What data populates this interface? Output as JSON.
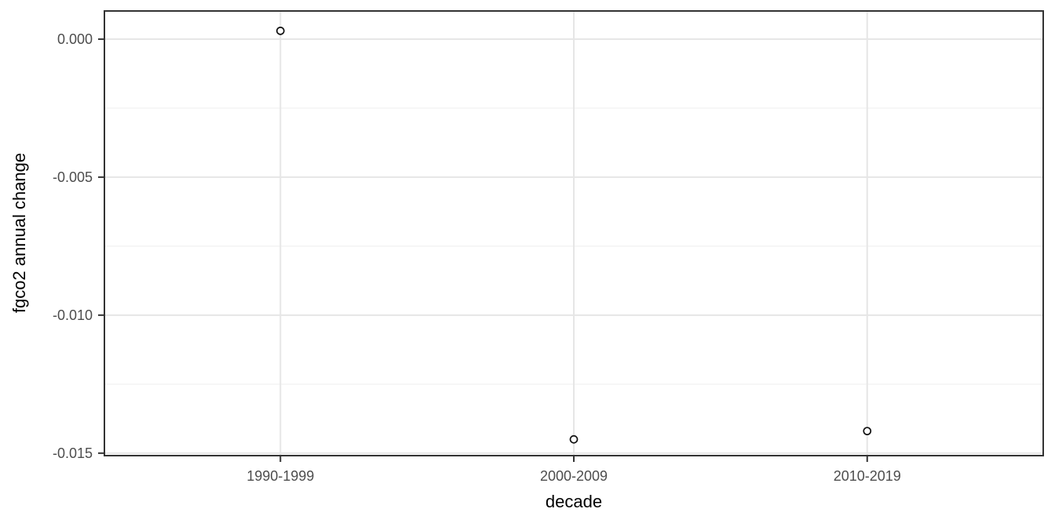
{
  "chart_data": {
    "type": "scatter",
    "title": "",
    "xlabel": "decade",
    "ylabel": "fgco2 annual change",
    "categories": [
      "1990-1999",
      "2000-2009",
      "2010-2019"
    ],
    "values": [
      0.0003,
      -0.0145,
      -0.0142
    ],
    "y_ticks": [
      0.0,
      -0.005,
      -0.01,
      -0.015
    ],
    "y_tick_labels": [
      "0.000",
      "-0.005",
      "-0.010",
      "-0.015"
    ],
    "y_minor_ticks": [
      -0.0025,
      -0.0075,
      -0.0125
    ],
    "ylim": [
      -0.01509,
      0.00102
    ],
    "grid": true,
    "legend_position": "none",
    "marker": "open-circle",
    "colors": {
      "background": "#FFFFFF",
      "panel_background": "#FFFFFF",
      "panel_border": "#333333",
      "grid_major": "#E6E6E6",
      "grid_minor": "#F2F2F2",
      "tick_mark": "#333333",
      "tick_label": "#4D4D4D",
      "axis_title": "#000000",
      "point_stroke": "#111111",
      "point_fill": "#FFFFFF"
    }
  }
}
